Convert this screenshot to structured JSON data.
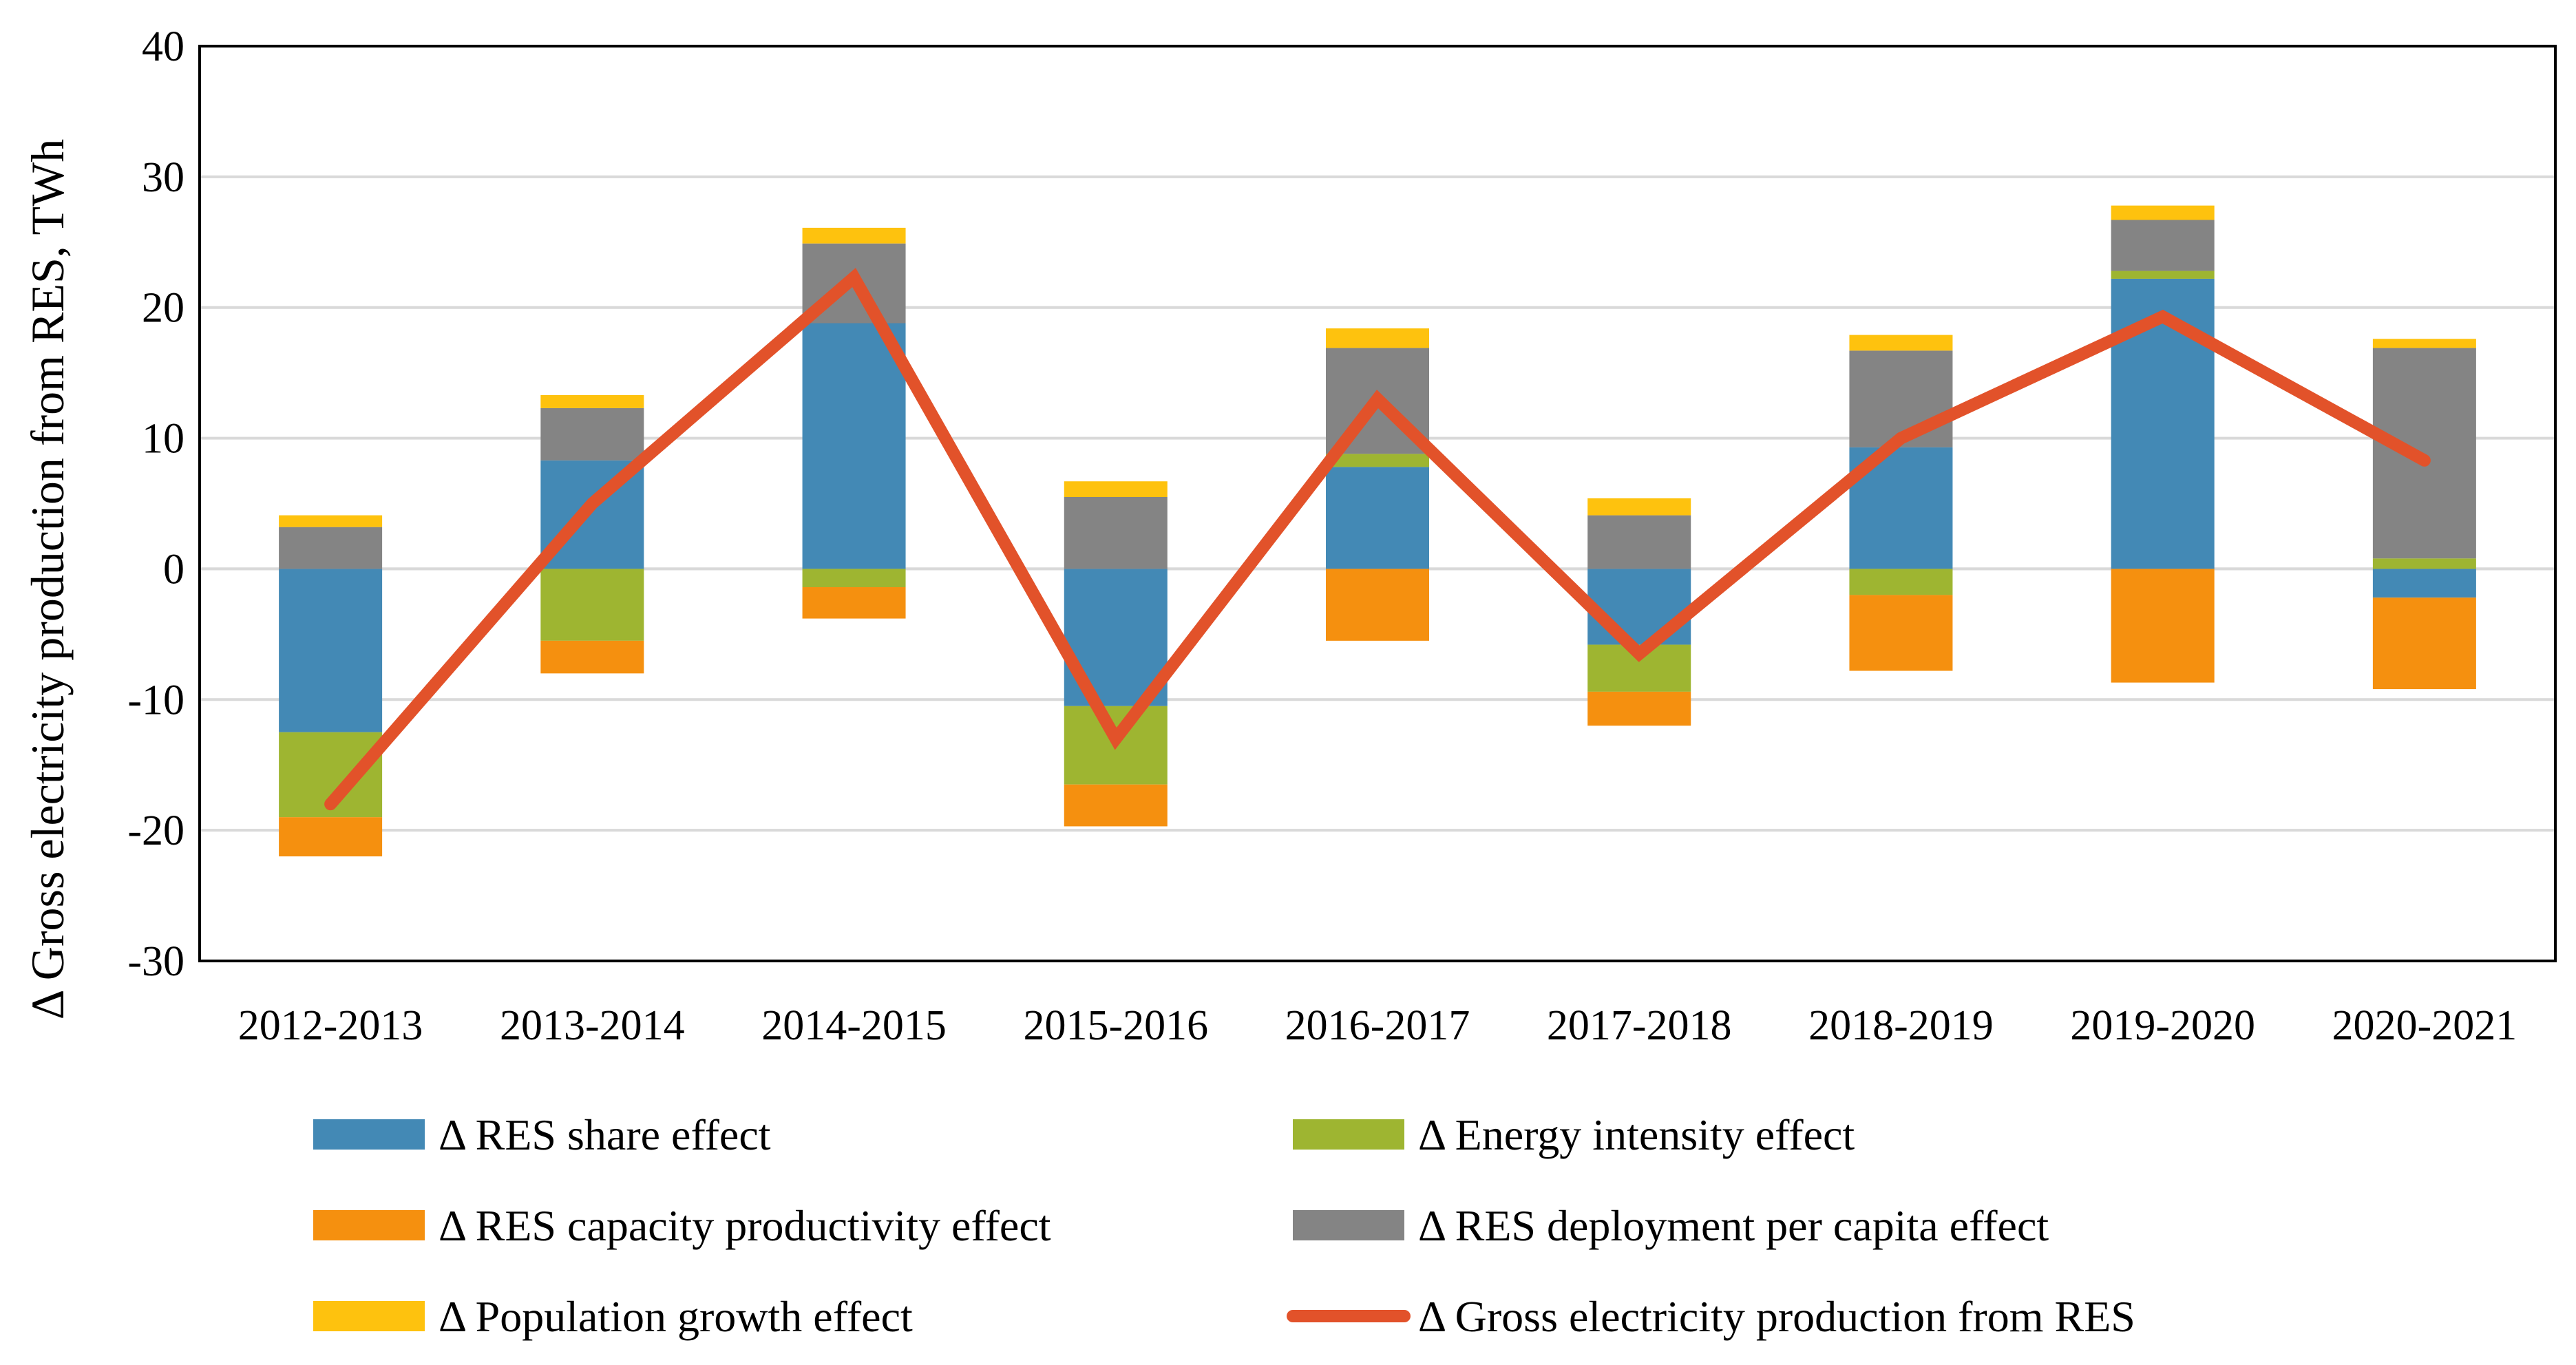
{
  "chart_data": {
    "type": "bar",
    "stacked": true,
    "title": "",
    "xlabel": "",
    "ylabel": "Δ Gross electricity production from RES, TWh",
    "ylim": [
      -30,
      40
    ],
    "yticks": [
      -30,
      -20,
      -10,
      0,
      10,
      20,
      30,
      40
    ],
    "ytick_labels": [
      "-30",
      "-20",
      "-10",
      "0",
      "10",
      "20",
      "30",
      "40"
    ],
    "grid": true,
    "legend_position": "bottom",
    "categories": [
      "2012-2013",
      "2013-2014",
      "2014-2015",
      "2015-2016",
      "2016-2017",
      "2017-2018",
      "2018-2019",
      "2019-2020",
      "2020-2021"
    ],
    "series": [
      {
        "name": "Δ RES share effect",
        "kind": "bar",
        "color": "#4389B5",
        "values": [
          -12.5,
          8.3,
          18.8,
          -10.5,
          7.8,
          -5.8,
          9.3,
          22.2,
          -2.2
        ]
      },
      {
        "name": "Δ Energy intensity effect",
        "kind": "bar",
        "color": "#9EB531",
        "values": [
          -6.5,
          -5.5,
          -1.4,
          -6.0,
          1.0,
          -3.6,
          -2.0,
          0.6,
          0.8
        ]
      },
      {
        "name": "Δ RES capacity productivity effect",
        "kind": "bar",
        "color": "#F5900F",
        "values": [
          -3.0,
          -2.5,
          -2.4,
          -3.2,
          -5.5,
          -2.6,
          -5.8,
          -8.7,
          -7.0
        ]
      },
      {
        "name": "Δ RES deployment per capita effect",
        "kind": "bar",
        "color": "#848484",
        "values": [
          3.2,
          4.0,
          6.1,
          5.5,
          8.1,
          4.1,
          7.4,
          3.9,
          16.1
        ]
      },
      {
        "name": "Δ Population growth effect",
        "kind": "bar",
        "color": "#FEC20E",
        "values": [
          0.9,
          1.0,
          1.2,
          1.2,
          1.5,
          1.3,
          1.2,
          1.1,
          0.7
        ]
      },
      {
        "name": "Δ Gross electricity production from RES",
        "kind": "line",
        "color": "#E2522A",
        "values": [
          -18,
          5,
          22.3,
          -13,
          13,
          -6.5,
          10,
          19.3,
          8.3
        ]
      }
    ]
  }
}
